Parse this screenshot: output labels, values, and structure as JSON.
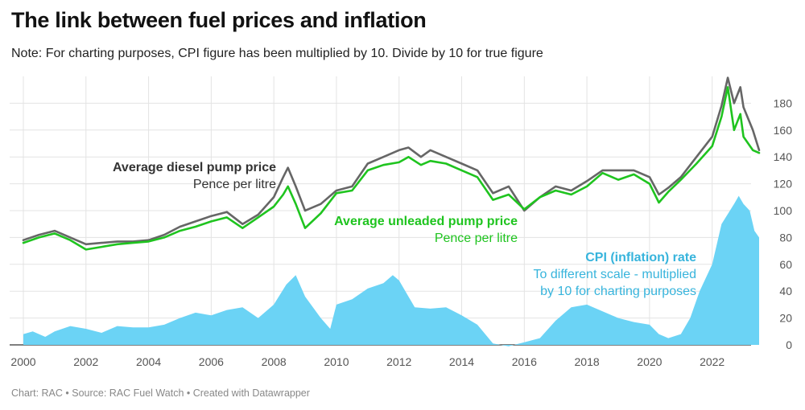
{
  "title": "The link between fuel prices and inflation",
  "subtitle": "Note: For charting purposes, CPI figure has been multiplied by 10. Divide by 10 for true figure",
  "footer": "Chart: RAC • Source: RAC Fuel Watch • Created with Datawrapper",
  "colors": {
    "diesel": "#666666",
    "unleaded": "#1fc41f",
    "cpi": "#6bd3f5",
    "cpi_text": "#37b4dc",
    "grid": "#e3e3e3"
  },
  "annotations": {
    "diesel": {
      "title": "Average diesel pump price",
      "sub": "Pence per litre"
    },
    "unleaded": {
      "title": "Average unleaded pump price",
      "sub": "Pence per litre"
    },
    "cpi": {
      "title": "CPI (inflation) rate",
      "line1": "To different scale - multiplied",
      "line2": "by 10 for charting purposes"
    }
  },
  "chart_data": {
    "type": "line",
    "x_ticks": [
      "2000",
      "2002",
      "2004",
      "2006",
      "2008",
      "2010",
      "2012",
      "2014",
      "2016",
      "2018",
      "2020",
      "2022"
    ],
    "y_ticks": [
      0,
      20,
      40,
      60,
      80,
      100,
      120,
      140,
      160,
      180
    ],
    "xlim": [
      2000,
      2023.5
    ],
    "ylim": [
      0,
      200
    ],
    "grid": true,
    "series": [
      {
        "name": "Average diesel pump price",
        "kind": "line",
        "points": [
          [
            2000,
            78
          ],
          [
            2000.5,
            82
          ],
          [
            2001,
            85
          ],
          [
            2001.5,
            80
          ],
          [
            2002,
            75
          ],
          [
            2002.5,
            76
          ],
          [
            2003,
            77
          ],
          [
            2003.5,
            77
          ],
          [
            2004,
            78
          ],
          [
            2004.5,
            82
          ],
          [
            2005,
            88
          ],
          [
            2005.5,
            92
          ],
          [
            2006,
            96
          ],
          [
            2006.5,
            99
          ],
          [
            2007,
            90
          ],
          [
            2007.5,
            97
          ],
          [
            2008,
            110
          ],
          [
            2008.3,
            125
          ],
          [
            2008.45,
            132
          ],
          [
            2008.7,
            118
          ],
          [
            2009,
            100
          ],
          [
            2009.5,
            105
          ],
          [
            2010,
            115
          ],
          [
            2010.5,
            118
          ],
          [
            2011,
            135
          ],
          [
            2011.5,
            140
          ],
          [
            2012,
            145
          ],
          [
            2012.3,
            147
          ],
          [
            2012.7,
            140
          ],
          [
            2013,
            145
          ],
          [
            2013.5,
            140
          ],
          [
            2014,
            135
          ],
          [
            2014.5,
            130
          ],
          [
            2015,
            113
          ],
          [
            2015.5,
            118
          ],
          [
            2016,
            100
          ],
          [
            2016.5,
            110
          ],
          [
            2017,
            118
          ],
          [
            2017.5,
            115
          ],
          [
            2018,
            122
          ],
          [
            2018.5,
            130
          ],
          [
            2019,
            130
          ],
          [
            2019.5,
            130
          ],
          [
            2020,
            125
          ],
          [
            2020.3,
            112
          ],
          [
            2020.6,
            117
          ],
          [
            2021,
            125
          ],
          [
            2021.5,
            140
          ],
          [
            2022,
            155
          ],
          [
            2022.3,
            178
          ],
          [
            2022.5,
            199
          ],
          [
            2022.7,
            180
          ],
          [
            2022.9,
            192
          ],
          [
            2023,
            177
          ],
          [
            2023.3,
            160
          ],
          [
            2023.5,
            145
          ]
        ]
      },
      {
        "name": "Average unleaded pump price",
        "kind": "line",
        "points": [
          [
            2000,
            76
          ],
          [
            2000.5,
            80
          ],
          [
            2001,
            83
          ],
          [
            2001.5,
            78
          ],
          [
            2002,
            71
          ],
          [
            2002.5,
            73
          ],
          [
            2003,
            75
          ],
          [
            2003.5,
            76
          ],
          [
            2004,
            77
          ],
          [
            2004.5,
            80
          ],
          [
            2005,
            85
          ],
          [
            2005.5,
            88
          ],
          [
            2006,
            92
          ],
          [
            2006.5,
            95
          ],
          [
            2007,
            87
          ],
          [
            2007.5,
            95
          ],
          [
            2008,
            103
          ],
          [
            2008.3,
            112
          ],
          [
            2008.45,
            118
          ],
          [
            2008.7,
            105
          ],
          [
            2009,
            87
          ],
          [
            2009.5,
            98
          ],
          [
            2010,
            113
          ],
          [
            2010.5,
            115
          ],
          [
            2011,
            130
          ],
          [
            2011.5,
            134
          ],
          [
            2012,
            136
          ],
          [
            2012.3,
            140
          ],
          [
            2012.7,
            134
          ],
          [
            2013,
            137
          ],
          [
            2013.5,
            135
          ],
          [
            2014,
            130
          ],
          [
            2014.5,
            125
          ],
          [
            2015,
            108
          ],
          [
            2015.5,
            112
          ],
          [
            2016,
            101
          ],
          [
            2016.5,
            110
          ],
          [
            2017,
            115
          ],
          [
            2017.5,
            112
          ],
          [
            2018,
            118
          ],
          [
            2018.5,
            128
          ],
          [
            2019,
            123
          ],
          [
            2019.5,
            127
          ],
          [
            2020,
            120
          ],
          [
            2020.3,
            106
          ],
          [
            2020.6,
            114
          ],
          [
            2021,
            123
          ],
          [
            2021.5,
            135
          ],
          [
            2022,
            148
          ],
          [
            2022.3,
            170
          ],
          [
            2022.5,
            192
          ],
          [
            2022.7,
            160
          ],
          [
            2022.9,
            172
          ],
          [
            2023,
            155
          ],
          [
            2023.3,
            145
          ],
          [
            2023.5,
            143
          ]
        ]
      },
      {
        "name": "CPI (inflation) rate",
        "kind": "area",
        "points": [
          [
            2000,
            8
          ],
          [
            2000.3,
            10
          ],
          [
            2000.7,
            6
          ],
          [
            2001,
            10
          ],
          [
            2001.5,
            14
          ],
          [
            2002,
            12
          ],
          [
            2002.5,
            9
          ],
          [
            2003,
            14
          ],
          [
            2003.5,
            13
          ],
          [
            2004,
            13
          ],
          [
            2004.5,
            15
          ],
          [
            2005,
            20
          ],
          [
            2005.5,
            24
          ],
          [
            2006,
            22
          ],
          [
            2006.5,
            26
          ],
          [
            2007,
            28
          ],
          [
            2007.5,
            20
          ],
          [
            2008,
            30
          ],
          [
            2008.4,
            45
          ],
          [
            2008.7,
            52
          ],
          [
            2009,
            36
          ],
          [
            2009.5,
            20
          ],
          [
            2009.8,
            12
          ],
          [
            2010,
            30
          ],
          [
            2010.5,
            34
          ],
          [
            2011,
            42
          ],
          [
            2011.5,
            46
          ],
          [
            2011.8,
            52
          ],
          [
            2012,
            48
          ],
          [
            2012.5,
            28
          ],
          [
            2013,
            27
          ],
          [
            2013.5,
            28
          ],
          [
            2014,
            22
          ],
          [
            2014.5,
            15
          ],
          [
            2015,
            1
          ],
          [
            2015.5,
            -1
          ],
          [
            2016,
            2
          ],
          [
            2016.5,
            5
          ],
          [
            2017,
            18
          ],
          [
            2017.5,
            28
          ],
          [
            2018,
            30
          ],
          [
            2018.5,
            25
          ],
          [
            2019,
            20
          ],
          [
            2019.5,
            17
          ],
          [
            2020,
            15
          ],
          [
            2020.3,
            8
          ],
          [
            2020.6,
            5
          ],
          [
            2021,
            8
          ],
          [
            2021.3,
            20
          ],
          [
            2021.6,
            40
          ],
          [
            2021.9,
            55
          ],
          [
            2022,
            60
          ],
          [
            2022.3,
            90
          ],
          [
            2022.7,
            105
          ],
          [
            2022.85,
            111
          ],
          [
            2023,
            105
          ],
          [
            2023.2,
            100
          ],
          [
            2023.35,
            85
          ],
          [
            2023.5,
            80
          ]
        ]
      }
    ]
  }
}
